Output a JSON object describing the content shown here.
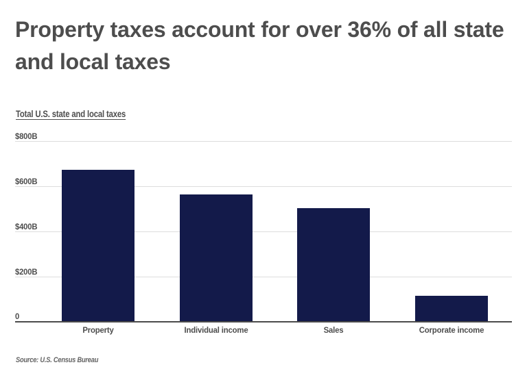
{
  "header": {
    "title": "Property taxes account for over 36% of all state and local taxes",
    "subtitle": "Total U.S. state and local taxes"
  },
  "chart_data": {
    "type": "bar",
    "title": "Property taxes account for over 36% of all state and local taxes",
    "subtitle": "Total U.S. state and local taxes",
    "categories": [
      "Property",
      "Individual income",
      "Sales",
      "Corporate income"
    ],
    "values": [
      675,
      565,
      505,
      115
    ],
    "unit": "billions of U.S. dollars",
    "ylim": [
      0,
      800
    ],
    "yticks": [
      {
        "value": 800,
        "label": "$800B"
      },
      {
        "value": 600,
        "label": "$600B"
      },
      {
        "value": 400,
        "label": "$400B"
      },
      {
        "value": 200,
        "label": "$200B"
      },
      {
        "value": 0,
        "label": "0"
      }
    ],
    "grid": true,
    "legend": false,
    "bar_color": "#131a4a",
    "source": "Source: U.S. Census Bureau"
  },
  "footer": {
    "source": "Source: U.S. Census Bureau"
  }
}
